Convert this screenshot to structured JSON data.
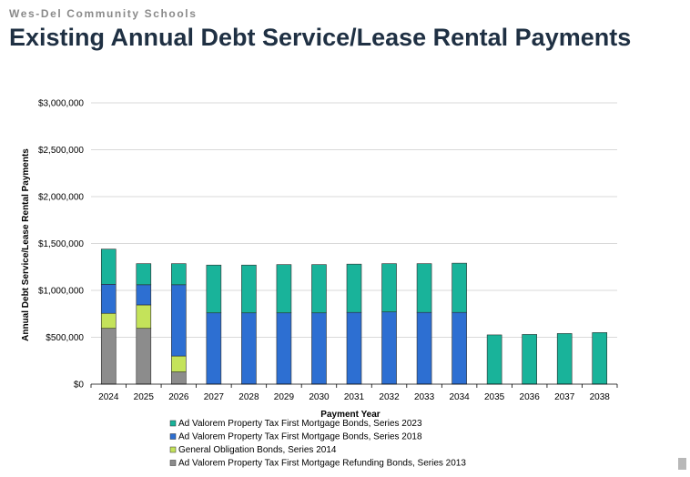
{
  "header": {
    "org": "Wes-Del Community Schools",
    "title": "Existing Annual Debt Service/Lease Rental Payments"
  },
  "chart_data": {
    "type": "bar",
    "stacked": true,
    "title": "",
    "xlabel": "Payment Year",
    "ylabel": "Annual Debt Service/Lease Rental Payments",
    "ylim": [
      0,
      3000000
    ],
    "yticks": [
      0,
      500000,
      1000000,
      1500000,
      2000000,
      2500000,
      3000000
    ],
    "ytick_labels": [
      "$0",
      "$500,000",
      "$1,000,000",
      "$1,500,000",
      "$2,000,000",
      "$2,500,000",
      "$3,000,000"
    ],
    "grid": true,
    "legend_position": "bottom",
    "categories": [
      "2024",
      "2025",
      "2026",
      "2027",
      "2028",
      "2029",
      "2030",
      "2031",
      "2032",
      "2033",
      "2034",
      "2035",
      "2036",
      "2037",
      "2038"
    ],
    "series": [
      {
        "name": "Ad Valorem Property Tax First Mortgage Refunding Bonds, Series 2013",
        "color": "#8c8c8c",
        "values": [
          595000,
          595000,
          130000,
          0,
          0,
          0,
          0,
          0,
          0,
          0,
          0,
          0,
          0,
          0,
          0
        ]
      },
      {
        "name": "General Obligation Bonds, Series 2014",
        "color": "#c4e35a",
        "values": [
          160000,
          250000,
          170000,
          0,
          0,
          0,
          0,
          0,
          0,
          0,
          0,
          0,
          0,
          0,
          0
        ]
      },
      {
        "name": "Ad Valorem Property Tax First Mortgage Bonds, Series 2018",
        "color": "#2d6fd2",
        "values": [
          310000,
          215000,
          760000,
          760000,
          760000,
          760000,
          760000,
          765000,
          770000,
          765000,
          765000,
          0,
          0,
          0,
          0
        ]
      },
      {
        "name": "Ad Valorem Property Tax First Mortgage Bonds, Series 2023",
        "color": "#19b39a",
        "values": [
          375000,
          225000,
          225000,
          510000,
          510000,
          515000,
          515000,
          515000,
          515000,
          520000,
          525000,
          525000,
          530000,
          540000,
          550000
        ]
      }
    ],
    "legend_order": [
      3,
      2,
      1,
      0
    ]
  }
}
